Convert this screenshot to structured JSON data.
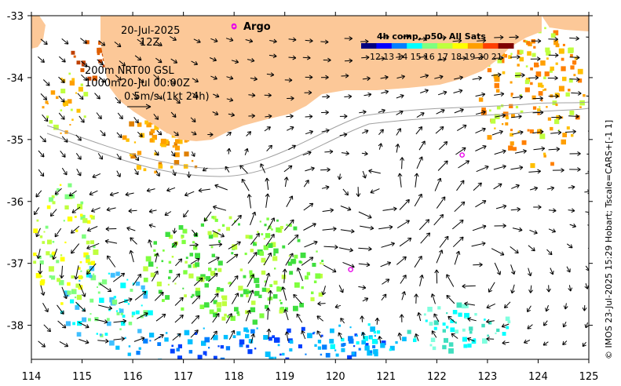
{
  "map": {
    "date": "20-Jul-2025",
    "hour": "12Z",
    "isobath_line1": "200m  NRT00 GSL",
    "isobath_line2": "1000m20-Jul 00:00Z",
    "vector_scale": "0.5m/s (1kt 24h)",
    "argo_label": "Argo",
    "colorbar_title": "4h comp, p50, All Sats",
    "colorbar_ticks": [
      "12",
      "13",
      "14",
      "15",
      "16",
      "17",
      "18",
      "19",
      "20",
      "21"
    ],
    "credit": "© IMOS 23-Jul-2025 15:29 Hobart; Tscale=CARS+[-1 1]",
    "x_ticks": [
      "114",
      "115",
      "116",
      "117",
      "118",
      "119",
      "120",
      "121",
      "122",
      "123",
      "124",
      "125"
    ],
    "y_ticks": [
      "-33",
      "-34",
      "-35",
      "-36",
      "-37",
      "-38"
    ],
    "extent": {
      "lon": [
        114,
        125
      ],
      "lat": [
        -38.55,
        -33
      ]
    },
    "argo_floats": [
      {
        "lon": 118.0,
        "lat": -33.18
      },
      {
        "lon": 122.5,
        "lat": -35.25
      },
      {
        "lon": 120.3,
        "lat": -37.1
      }
    ],
    "colors": {
      "land": "#fcc898",
      "argo": "#e800e8",
      "arrow": "#000000",
      "isobath": "#a0a0a0",
      "sst_scale": [
        "#00007f",
        "#0000ff",
        "#007fff",
        "#00ffff",
        "#7fff7f",
        "#bfff3f",
        "#ffff00",
        "#ff9f00",
        "#ff3f00",
        "#7f0000"
      ]
    }
  }
}
